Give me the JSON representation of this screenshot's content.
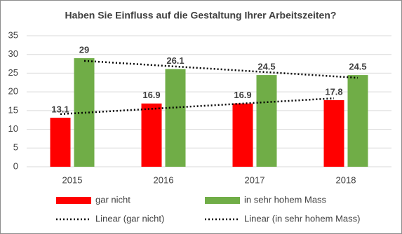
{
  "chart_data": {
    "type": "bar",
    "title": "Haben Sie Einfluss auf die Gestaltung Ihrer Arbeitszeiten?",
    "categories": [
      "2015",
      "2016",
      "2017",
      "2018"
    ],
    "series": [
      {
        "name": "gar nicht",
        "color": "#ff0000",
        "values": [
          13.1,
          16.9,
          16.9,
          17.8
        ],
        "trendline": "Linear (gar nicht)"
      },
      {
        "name": "in sehr hohem Mass",
        "color": "#70ad47",
        "values": [
          29,
          26.1,
          24.5,
          24.5
        ],
        "trendline": "Linear (in sehr hohem Mass)"
      }
    ],
    "ylim": [
      0,
      35
    ],
    "yticks": [
      0,
      5,
      10,
      15,
      20,
      25,
      30,
      35
    ],
    "grid": true
  }
}
